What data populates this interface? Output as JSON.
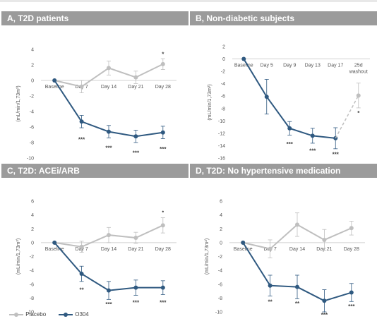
{
  "colors": {
    "placebo": "#bfbfbf",
    "o304": "#2f5980",
    "header_bg": "#9b9b9b"
  },
  "legend": {
    "placebo_label": "Placebo",
    "o304_label": "O304"
  },
  "chart_data": [
    {
      "id": "A",
      "type": "line",
      "title": "A, T2D patients",
      "ylabel": "(mL/min/1,73m²)",
      "ylim": [
        -10,
        4
      ],
      "yticks": [
        4,
        2,
        0,
        -2,
        -4,
        -6,
        -8,
        -10
      ],
      "categories": [
        "Baseline",
        "Day 7",
        "Day 14",
        "Day 21",
        "Day 28"
      ],
      "series": [
        {
          "name": "Placebo",
          "values": [
            0,
            -0.8,
            1.6,
            0.4,
            2.1
          ],
          "err": [
            0,
            0.8,
            0.9,
            0.8,
            0.7
          ]
        },
        {
          "name": "O304",
          "values": [
            0,
            -5.3,
            -6.6,
            -7.2,
            -6.7
          ],
          "err": [
            0,
            0.8,
            0.8,
            0.8,
            0.8
          ]
        }
      ],
      "annotations": [
        {
          "category": "Day 7",
          "text": "***",
          "y": -7.6
        },
        {
          "category": "Day 14",
          "text": "***",
          "y": -8.7
        },
        {
          "category": "Day 21",
          "text": "***",
          "y": -9.3
        },
        {
          "category": "Day 28",
          "text": "***",
          "y": -8.8
        },
        {
          "category": "Day 28",
          "text": "*",
          "y": 3.4
        }
      ]
    },
    {
      "id": "B",
      "type": "line",
      "title": "B, Non-diabetic subjects",
      "ylabel": "(mL/min/1,73m²)",
      "ylim": [
        -16,
        2
      ],
      "yticks": [
        2,
        0,
        -2,
        -4,
        -6,
        -8,
        -10,
        -12,
        -14,
        -16
      ],
      "categories": [
        "Baseline",
        "Day 5",
        "Day 9",
        "Day 13",
        "Day 17",
        "25d washout"
      ],
      "category_lines": [
        [
          "Baseline"
        ],
        [
          "Day 5"
        ],
        [
          "Day 9"
        ],
        [
          "Day 13"
        ],
        [
          "Day 17"
        ],
        [
          "25d",
          "washout"
        ]
      ],
      "series": [
        {
          "name": "O304",
          "values": [
            0,
            -6.1,
            -11.2,
            -12.4,
            -12.8,
            null
          ],
          "err": [
            0,
            2.8,
            1.1,
            1.2,
            1.7,
            0
          ]
        },
        {
          "name": "Placebo",
          "values": [
            null,
            null,
            null,
            null,
            null,
            -5.9
          ],
          "err": [
            0,
            0,
            0,
            0,
            0,
            2.0
          ]
        }
      ],
      "dashed_link": {
        "from": 4,
        "to": 5
      },
      "annotations": [
        {
          "category": "Day 9",
          "text": "***",
          "y": -13.7
        },
        {
          "category": "Day 13",
          "text": "***",
          "y": -14.8
        },
        {
          "category": "Day 17",
          "text": "***",
          "y": -15.4
        },
        {
          "category": "25d washout",
          "text": "*",
          "y": -8.7
        }
      ]
    },
    {
      "id": "C",
      "type": "line",
      "title": "C, T2D: ACEi/ARB",
      "ylabel": "(mL/min/1,73m²)",
      "ylim": [
        -10,
        6
      ],
      "yticks": [
        6,
        4,
        2,
        0,
        -2,
        -4,
        -6,
        -8,
        -10
      ],
      "categories": [
        "Baseline",
        "Day 7",
        "Day 14",
        "Day 21",
        "Day 28"
      ],
      "series": [
        {
          "name": "Placebo",
          "values": [
            0,
            -0.6,
            1.1,
            0.7,
            2.5
          ],
          "err": [
            0,
            0.8,
            1.1,
            0.8,
            1.1
          ]
        },
        {
          "name": "O304",
          "values": [
            0,
            -4.5,
            -6.9,
            -6.5,
            -6.5
          ],
          "err": [
            0,
            1.1,
            1.3,
            1.1,
            1.0
          ]
        }
      ],
      "annotations": [
        {
          "category": "Day 7",
          "text": "**",
          "y": -6.8
        },
        {
          "category": "Day 14",
          "text": "***",
          "y": -8.9
        },
        {
          "category": "Day 21",
          "text": "***",
          "y": -8.6
        },
        {
          "category": "Day 28",
          "text": "***",
          "y": -8.6
        },
        {
          "category": "Day 28",
          "text": "•",
          "y": 4.5
        }
      ]
    },
    {
      "id": "D",
      "type": "line",
      "title": "D, T2D: No hypertensive medication",
      "ylabel": "(mL/min/1,73m²)",
      "ylim": [
        -10,
        6
      ],
      "yticks": [
        6,
        4,
        2,
        0,
        -2,
        -4,
        -6,
        -8,
        -10
      ],
      "categories": [
        "Baseline",
        "Day 7",
        "Day 14",
        "Day 21",
        "Day 28"
      ],
      "series": [
        {
          "name": "Placebo",
          "values": [
            0,
            -0.9,
            2.6,
            0.4,
            2.1
          ],
          "err": [
            0,
            1.3,
            1.7,
            1.5,
            1.0
          ]
        },
        {
          "name": "O304",
          "values": [
            0,
            -6.2,
            -6.4,
            -8.4,
            -7.2
          ],
          "err": [
            0,
            1.5,
            1.7,
            1.6,
            1.3
          ]
        }
      ],
      "annotations": [
        {
          "category": "Day 7",
          "text": "**",
          "y": -8.5
        },
        {
          "category": "Day 14",
          "text": "**",
          "y": -8.8
        },
        {
          "category": "Day 21",
          "text": "***",
          "y": -10.4
        },
        {
          "category": "Day 28",
          "text": "***",
          "y": -9.2
        }
      ]
    }
  ]
}
